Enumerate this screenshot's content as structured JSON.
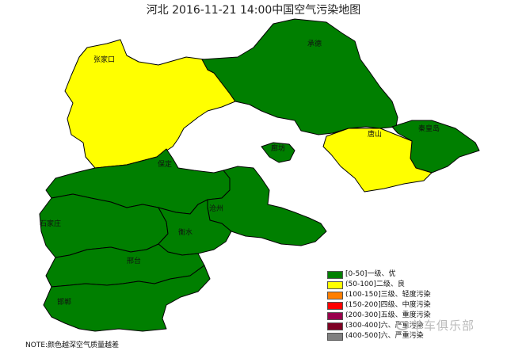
{
  "title": "河北 2016-11-21 14:00中国空气污染地图",
  "regions": [
    {
      "key": "zhangjiakou",
      "label": "张家口",
      "color": "#ffff00"
    },
    {
      "key": "chengde",
      "label": "承德",
      "color": "#007f00"
    },
    {
      "key": "qinhuangdao",
      "label": "秦皇岛",
      "color": "#007f00"
    },
    {
      "key": "tangshan",
      "label": "唐山",
      "color": "#ffff00"
    },
    {
      "key": "langfang",
      "label": "廊坊",
      "color": "#007f00"
    },
    {
      "key": "baoding",
      "label": "保定",
      "color": "#007f00"
    },
    {
      "key": "cangzhou",
      "label": "沧州",
      "color": "#007f00"
    },
    {
      "key": "shijiazhuang",
      "label": "石家庄",
      "color": "#007f00"
    },
    {
      "key": "hengshui",
      "label": "衡水",
      "color": "#007f00"
    },
    {
      "key": "xingtai",
      "label": "邢台",
      "color": "#007f00"
    },
    {
      "key": "handan",
      "label": "邯郸",
      "color": "#007f00"
    }
  ],
  "legend": [
    {
      "label": "[0-50]一级、优",
      "color": "#007f00"
    },
    {
      "label": "(50-100]二级、良",
      "color": "#ffff00"
    },
    {
      "label": "(100-150]三级、轻度污染",
      "color": "#ff7e00"
    },
    {
      "label": "(150-200]四级、中度污染",
      "color": "#ff0000"
    },
    {
      "label": "(200-300]五级、重度污染",
      "color": "#99004c"
    },
    {
      "label": "(300-400]六、严重污染",
      "color": "#7e0023"
    },
    {
      "label": "(400-500]六、严重污染",
      "color": "#808080"
    }
  ],
  "note": "NOTE:颜色越深空气质量越差",
  "watermark": "单车俱乐部"
}
